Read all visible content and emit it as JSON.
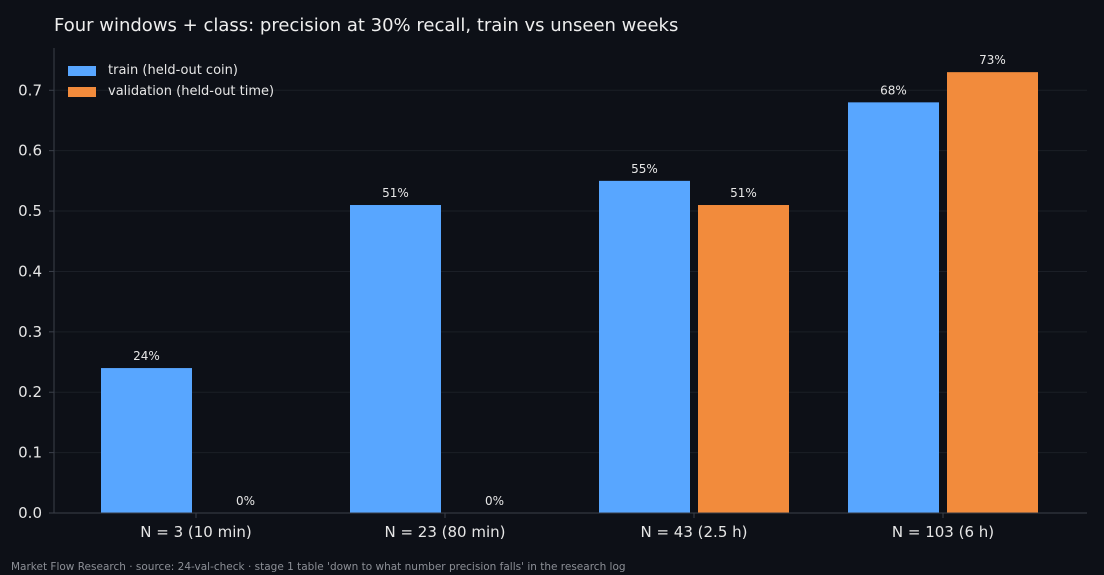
{
  "chart_data": {
    "type": "bar",
    "title": "Four windows + class: precision at 30% recall, train vs unseen weeks",
    "xlabel": "",
    "ylabel": "",
    "categories": [
      "N = 3 (10 min)",
      "N = 23 (80 min)",
      "N = 43 (2.5 h)",
      "N = 103 (6 h)"
    ],
    "series": [
      {
        "name": "train (held-out coin)",
        "values": [
          0.24,
          0.51,
          0.55,
          0.68
        ],
        "labels": [
          "24%",
          "51%",
          "55%",
          "68%"
        ],
        "color": "#58a6ff"
      },
      {
        "name": "validation (held-out time)",
        "values": [
          0.0,
          0.0,
          0.51,
          0.73
        ],
        "labels": [
          "0%",
          "0%",
          "51%",
          "73%"
        ],
        "color": "#f28b3c"
      }
    ],
    "ylim": [
      0,
      0.77
    ],
    "yticks": [
      "0.0",
      "0.1",
      "0.2",
      "0.3",
      "0.4",
      "0.5",
      "0.6",
      "0.7"
    ],
    "grid": true,
    "legend_position": "top-left"
  },
  "footer": {
    "text": "Market Flow Research · source: 24-val-check · stage 1 table 'down to what number precision falls' in the research log"
  },
  "colors": {
    "background": "#0d1017",
    "grid": "#1b1f27",
    "axis": "#3a3f49",
    "text": "#e6e6e6"
  }
}
